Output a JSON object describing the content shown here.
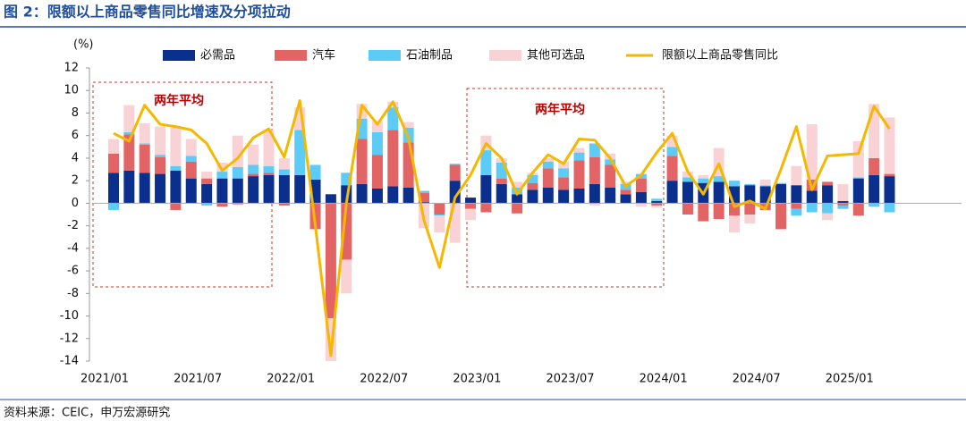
{
  "chart_data": {
    "type": "bar-line",
    "title": "图 2：限额以上商品零售同比增速及分项拉动",
    "source": "资料来源：CEIC，申万宏源研究",
    "y_label": "(%)",
    "annotations": [
      "两年平均",
      "两年平均"
    ],
    "categories": [
      "2021/01",
      null,
      null,
      null,
      null,
      null,
      "2021/07",
      null,
      null,
      null,
      null,
      null,
      "2022/01",
      null,
      null,
      null,
      null,
      null,
      "2022/07",
      null,
      null,
      null,
      null,
      null,
      "2023/01",
      null,
      null,
      null,
      null,
      null,
      "2023/07",
      null,
      null,
      null,
      null,
      null,
      "2024/01",
      null,
      null,
      null,
      null,
      null,
      "2024/07",
      null,
      null,
      null,
      null,
      null,
      "2025/01",
      null,
      null
    ],
    "ylim": [
      -14,
      12
    ],
    "yticks": [
      -14,
      -12,
      -10,
      -8,
      -6,
      -4,
      -2,
      0,
      2,
      4,
      6,
      8,
      10,
      12
    ],
    "series": [
      {
        "name": "必需品",
        "color": "#0b2f8c",
        "type": "bar",
        "values": [
          2.7,
          2.9,
          2.7,
          2.6,
          2.9,
          2.2,
          1.7,
          2.2,
          2.2,
          2.4,
          2.5,
          2.5,
          2.5,
          2.1,
          0.8,
          1.6,
          1.7,
          1.3,
          1.5,
          1.4,
          0.1,
          0.0,
          2.0,
          0.5,
          2.5,
          1.7,
          0.8,
          1.2,
          1.4,
          1.2,
          1.3,
          1.7,
          1.4,
          0.8,
          1.0,
          0.2,
          2.0,
          1.9,
          1.8,
          1.9,
          1.5,
          1.6,
          1.5,
          1.7,
          1.6,
          1.1,
          1.6,
          0.2,
          2.2,
          2.5,
          2.4
        ]
      },
      {
        "name": "汽车",
        "color": "#e36464",
        "type": "bar",
        "values": [
          1.7,
          3.2,
          2.5,
          1.5,
          -0.6,
          1.5,
          0.5,
          -0.3,
          -0.1,
          0.2,
          0.2,
          -0.2,
          0.0,
          -2.3,
          -10.2,
          -5.0,
          4.0,
          3.0,
          5.0,
          4.0,
          0.8,
          -1.0,
          1.4,
          -0.5,
          -0.8,
          0.5,
          -0.9,
          0.6,
          1.7,
          1.1,
          2.5,
          2.4,
          2.0,
          0.4,
          1.2,
          -0.2,
          2.2,
          -1.0,
          -1.6,
          -1.4,
          -1.1,
          -1.0,
          -0.6,
          -2.3,
          -0.5,
          1.0,
          0.3,
          -0.2,
          -1.1,
          1.5,
          0.2
        ]
      },
      {
        "name": "石油制品",
        "color": "#5cccf6",
        "type": "bar",
        "values": [
          -0.6,
          0.2,
          0.1,
          0.2,
          0.4,
          0.5,
          -0.2,
          0.6,
          1.0,
          0.8,
          0.6,
          0.5,
          4.0,
          1.3,
          0.0,
          1.1,
          1.8,
          2.0,
          2.0,
          1.3,
          0.2,
          -0.1,
          0.1,
          0.0,
          2.2,
          1.4,
          0.6,
          0.7,
          0.6,
          0.8,
          0.7,
          1.2,
          0.5,
          0.5,
          0.4,
          0.2,
          0.8,
          0.4,
          0.4,
          0.5,
          0.5,
          0.1,
          0.1,
          0.1,
          -0.6,
          -0.8,
          -0.9,
          -0.3,
          0.1,
          -0.3,
          -0.8
        ]
      },
      {
        "name": "其他可选品",
        "color": "#f8d2d4",
        "type": "bar",
        "values": [
          1.3,
          2.4,
          1.8,
          2.5,
          3.5,
          1.5,
          0.6,
          0.8,
          2.8,
          1.8,
          3.2,
          1.0,
          2.0,
          0.0,
          -3.8,
          -3.0,
          1.3,
          1.0,
          0.5,
          0.5,
          -2.2,
          -1.5,
          -3.5,
          -1.0,
          1.3,
          0.4,
          0.5,
          0.2,
          0.3,
          0.6,
          0.4,
          -0.2,
          0.5,
          0.2,
          -0.3,
          -0.2,
          1.0,
          0.5,
          0.3,
          2.5,
          -1.5,
          -0.8,
          0.5,
          0.0,
          1.7,
          4.9,
          -0.6,
          1.5,
          3.2,
          4.8,
          5.0
        ]
      },
      {
        "name": "限额以上商品零售同比",
        "color": "#f5b800",
        "type": "line",
        "values": [
          6.2,
          5.5,
          8.7,
          7.0,
          6.8,
          6.5,
          5.3,
          2.9,
          4.0,
          5.8,
          6.6,
          4.1,
          9.1,
          -2.0,
          -13.5,
          0.0,
          8.7,
          7.0,
          9.0,
          5.8,
          -1.5,
          -5.7,
          0.5,
          2.5,
          5.3,
          4.0,
          0.8,
          2.7,
          4.3,
          3.5,
          5.7,
          5.6,
          4.0,
          1.5,
          2.5,
          4.5,
          6.2,
          2.8,
          0.8,
          3.5,
          -0.3,
          0.2,
          -0.5,
          3.0,
          6.8,
          1.2,
          4.2,
          4.3,
          4.4,
          8.6,
          6.6
        ]
      }
    ]
  }
}
